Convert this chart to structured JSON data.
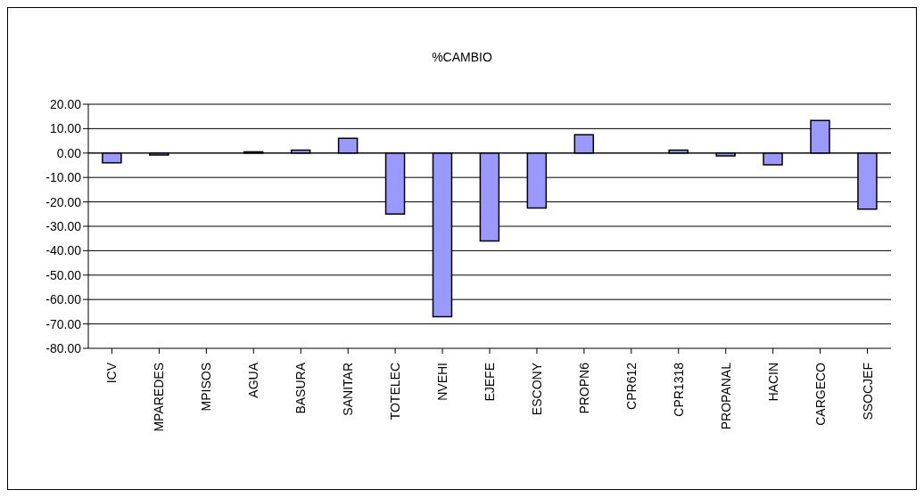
{
  "chart_data": {
    "type": "bar",
    "title": "%CAMBIO",
    "categories": [
      "ICV",
      "MPAREDES",
      "MPISOS",
      "AGUA",
      "BASURA",
      "SANITAR",
      "TOTELEC",
      "NVEHI",
      "EJEFE",
      "ESCONY",
      "PROPN6",
      "CPR612",
      "CPR1318",
      "PROPANAL",
      "HACIN",
      "CARGECO",
      "SSOCJEF"
    ],
    "values": [
      -4,
      -0.8,
      0,
      0.5,
      1.2,
      6,
      -25,
      -67,
      -36,
      -22.5,
      7.5,
      0,
      1.2,
      -1.2,
      -4.8,
      13.3,
      -23
    ],
    "color": "#9999ff",
    "ylim": [
      -80,
      20
    ],
    "yticks": [
      {
        "value": -80,
        "label": "-80.00"
      },
      {
        "value": -70,
        "label": "-70.00"
      },
      {
        "value": -60,
        "label": "-60.00"
      },
      {
        "value": -50,
        "label": "-50.00"
      },
      {
        "value": -40,
        "label": "-40.00"
      },
      {
        "value": -30,
        "label": "-30.00"
      },
      {
        "value": -20,
        "label": "-20.00"
      },
      {
        "value": -10,
        "label": "-10.00"
      },
      {
        "value": 0,
        "label": "0.00"
      },
      {
        "value": 10,
        "label": "10.00"
      },
      {
        "value": 20,
        "label": "20.00"
      }
    ],
    "grid": "y"
  }
}
